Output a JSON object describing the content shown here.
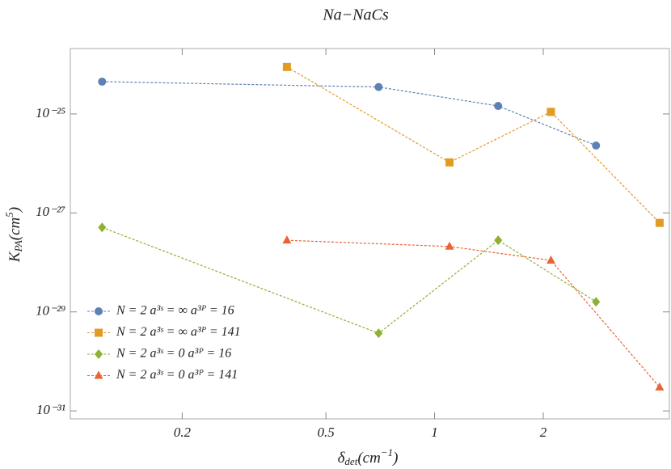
{
  "chart_data": {
    "type": "line",
    "title": "Na−NaCs",
    "xlabel": [
      "δ",
      "det",
      "(cm",
      "−1",
      ")"
    ],
    "ylabel": [
      "K",
      "PA",
      "(cm",
      "5",
      ")"
    ],
    "xscale": "log",
    "yscale": "log",
    "xlim": [
      0.098,
      4.47
    ],
    "ylim": [
      6.9e-32,
      2.1e-24
    ],
    "xticks": [
      0.2,
      0.5,
      1,
      2
    ],
    "yticks": [
      {
        "value": 1e-25,
        "label": "10⁻²⁵"
      },
      {
        "value": 1e-27,
        "label": "10⁻²⁷"
      },
      {
        "value": 1e-29,
        "label": "10⁻²⁹"
      },
      {
        "value": 1e-31,
        "label": "10⁻³¹"
      }
    ],
    "legend": "lower left",
    "series": [
      {
        "name": "N = 2 a³ˢ = ∞ a³ᴾ = 16",
        "color": "#5e81b5",
        "marker": "circle",
        "x": [
          0.12,
          0.7,
          1.5,
          2.8
        ],
        "values": [
          4.5e-25,
          3.5e-25,
          1.45e-25,
          2.3e-26
        ]
      },
      {
        "name": "N = 2 a³ˢ = ∞ a³ᴾ = 141",
        "color": "#e19c24",
        "marker": "square",
        "x": [
          0.39,
          1.1,
          2.1,
          4.2
        ],
        "values": [
          8.9e-25,
          1.05e-26,
          1.1e-25,
          6.3e-28
        ]
      },
      {
        "name": "N = 2 a³ˢ = 0 a³ᴾ = 16",
        "color": "#8fb032",
        "marker": "diamond",
        "x": [
          0.12,
          0.7,
          1.5,
          2.8
        ],
        "values": [
          5.1e-28,
          3.7e-30,
          2.8e-28,
          1.6e-29
        ]
      },
      {
        "name": "N = 2 a³ˢ = 0 a³ᴾ = 141",
        "color": "#eb6235",
        "marker": "triangle",
        "x": [
          0.39,
          1.1,
          2.1,
          4.2
        ],
        "values": [
          2.8e-28,
          2.1e-28,
          1.1e-28,
          3e-31
        ]
      }
    ]
  }
}
